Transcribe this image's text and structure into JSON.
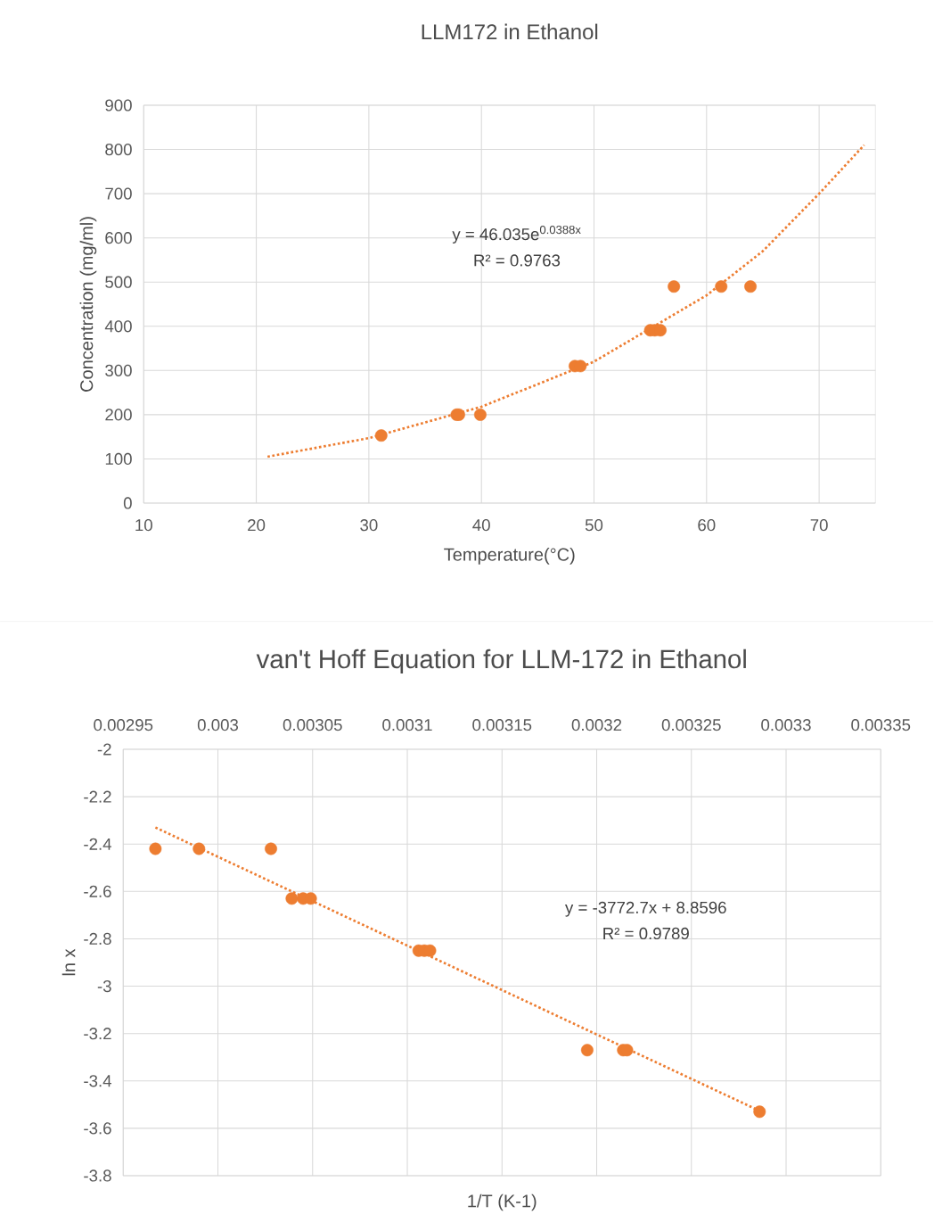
{
  "chart_data": [
    {
      "type": "scatter",
      "title": "LLM172 in Ethanol",
      "xlabel": "Temperature(°C)",
      "ylabel": "Concentration (mg/ml)",
      "xlim": [
        10,
        75
      ],
      "xticks": [
        10,
        20,
        30,
        40,
        50,
        60,
        70
      ],
      "ylim": [
        0,
        900
      ],
      "yticks": [
        0,
        100,
        200,
        300,
        400,
        500,
        600,
        700,
        800,
        900
      ],
      "grid": true,
      "marker": "circle",
      "series": [
        {
          "color": "#ed7d31",
          "x": [
            31.1,
            37.8,
            38.0,
            39.9,
            48.3,
            48.8,
            55.0,
            55.4,
            55.9,
            57.1,
            61.3,
            63.9
          ],
          "values": [
            153,
            200,
            200,
            200,
            310,
            310,
            391,
            391,
            391,
            490,
            490,
            490
          ]
        },
        {
          "type": "line",
          "color": "#ed7d31",
          "line_style": "dotted",
          "marker": "none",
          "x": [
            21,
            30,
            40,
            50,
            60,
            65,
            70,
            74
          ],
          "values": [
            105,
            147,
            218,
            320,
            470,
            570,
            700,
            810
          ]
        }
      ],
      "annotations": [
        "y = 46.035e$^{0.0388x}$",
        "R² = 0.9763"
      ]
    },
    {
      "type": "scatter",
      "title": "van't Hoff Equation for LLM-172 in Ethanol",
      "xlabel": "1/T (K-1)",
      "ylabel": "ln x",
      "xlim": [
        0.00295,
        0.00335
      ],
      "xticks": [
        0.00295,
        0.003,
        0.00305,
        0.0031,
        0.00315,
        0.0032,
        0.00325,
        0.0033,
        0.00335
      ],
      "ylim": [
        -3.8,
        -2
      ],
      "yticks": [
        -3.8,
        -3.6,
        -3.4,
        -3.2,
        -3,
        -2.8,
        -2.6,
        -2.4,
        -2.2,
        -2
      ],
      "grid": true,
      "marker": "circle",
      "series": [
        {
          "color": "#ed7d31",
          "x": [
            0.002967,
            0.00299,
            0.003028,
            0.003039,
            0.003045,
            0.003049,
            0.003106,
            0.003109,
            0.003112,
            0.003195,
            0.003214,
            0.003216,
            0.003286
          ],
          "values": [
            -2.42,
            -2.42,
            -2.42,
            -2.63,
            -2.63,
            -2.63,
            -2.85,
            -2.85,
            -2.85,
            -3.27,
            -3.27,
            -3.27,
            -3.53
          ]
        },
        {
          "type": "line",
          "color": "#ed7d31",
          "line_style": "dotted",
          "marker": "none",
          "x": [
            0.002967,
            0.003287
          ],
          "values": [
            -2.33,
            -3.53
          ]
        }
      ],
      "annotations": [
        "y = -3772.7x + 8.8596",
        "R² = 0.9789"
      ]
    }
  ]
}
